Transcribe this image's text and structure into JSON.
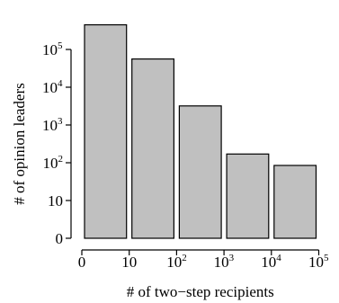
{
  "chart_data": {
    "type": "bar",
    "title": "",
    "xlabel": "# of two−step recipients",
    "ylabel": "# of opinion leaders",
    "y_scale": "log",
    "ylim": [
      1,
      1000000
    ],
    "bins": [
      {
        "from": "0",
        "to": "10",
        "value": 450000
      },
      {
        "from": "10",
        "to": "10^2",
        "value": 56000
      },
      {
        "from": "10^2",
        "to": "10^3",
        "value": 3200
      },
      {
        "from": "10^3",
        "to": "10^4",
        "value": 170
      },
      {
        "from": "10^4",
        "to": "10^5",
        "value": 85
      }
    ],
    "x_ticks": [
      {
        "base": "0",
        "exp": ""
      },
      {
        "base": "10",
        "exp": ""
      },
      {
        "base": "10",
        "exp": "2"
      },
      {
        "base": "10",
        "exp": "3"
      },
      {
        "base": "10",
        "exp": "4"
      },
      {
        "base": "10",
        "exp": "5"
      }
    ],
    "y_ticks": [
      {
        "value": 1,
        "base": "0",
        "exp": ""
      },
      {
        "value": 10,
        "base": "10",
        "exp": ""
      },
      {
        "value": 100,
        "base": "10",
        "exp": "2"
      },
      {
        "value": 1000,
        "base": "10",
        "exp": "3"
      },
      {
        "value": 10000,
        "base": "10",
        "exp": "4"
      },
      {
        "value": 100000,
        "base": "10",
        "exp": "5"
      }
    ],
    "grid": false,
    "bar_color": "#c0c0c0",
    "edge_color": "#000000"
  }
}
